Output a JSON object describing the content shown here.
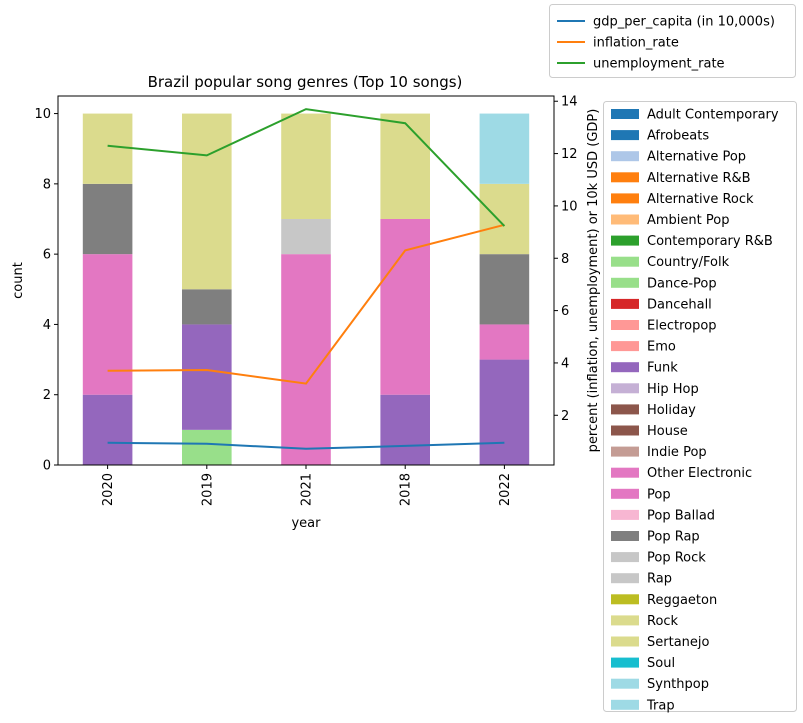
{
  "chart_data": {
    "type": "bar",
    "stacked": true,
    "title": "Brazil popular song genres (Top 10 songs)",
    "xlabel": "year",
    "ylabel": "count",
    "y2label": "percent (inflation, unemployment) or 10k USD (GDP)",
    "categories": [
      "2020",
      "2019",
      "2021",
      "2018",
      "2022"
    ],
    "ylim": [
      0,
      10.5
    ],
    "yticks": [
      0,
      2,
      4,
      6,
      8,
      10
    ],
    "y2lim": [
      0.1,
      14.2
    ],
    "y2ticks": [
      2,
      4,
      6,
      8,
      10,
      12,
      14
    ],
    "genre_legend": [
      {
        "name": "Adult Contemporary",
        "color": "#1f77b4"
      },
      {
        "name": "Afrobeats",
        "color": "#1f77b4"
      },
      {
        "name": "Alternative Pop",
        "color": "#aec7e8"
      },
      {
        "name": "Alternative R&B",
        "color": "#ff7f0e"
      },
      {
        "name": "Alternative Rock",
        "color": "#ff7f0e"
      },
      {
        "name": "Ambient Pop",
        "color": "#ffbb78"
      },
      {
        "name": "Contemporary R&B",
        "color": "#2ca02c"
      },
      {
        "name": "Country/Folk",
        "color": "#98df8a"
      },
      {
        "name": "Dance-Pop",
        "color": "#98df8a"
      },
      {
        "name": "Dancehall",
        "color": "#d62728"
      },
      {
        "name": "Electropop",
        "color": "#ff9896"
      },
      {
        "name": "Emo",
        "color": "#ff9896"
      },
      {
        "name": "Funk",
        "color": "#9467bd"
      },
      {
        "name": "Hip Hop",
        "color": "#c5b0d5"
      },
      {
        "name": "Holiday",
        "color": "#8c564b"
      },
      {
        "name": "House",
        "color": "#8c564b"
      },
      {
        "name": "Indie Pop",
        "color": "#c49c94"
      },
      {
        "name": "Other Electronic",
        "color": "#e377c2"
      },
      {
        "name": "Pop",
        "color": "#e377c2"
      },
      {
        "name": "Pop Ballad",
        "color": "#f7b6d2"
      },
      {
        "name": "Pop Rap",
        "color": "#7f7f7f"
      },
      {
        "name": "Pop Rock",
        "color": "#c7c7c7"
      },
      {
        "name": "Rap",
        "color": "#c7c7c7"
      },
      {
        "name": "Reggaeton",
        "color": "#bcbd22"
      },
      {
        "name": "Rock",
        "color": "#dbdb8d"
      },
      {
        "name": "Sertanejo",
        "color": "#dbdb8d"
      },
      {
        "name": "Soul",
        "color": "#17becf"
      },
      {
        "name": "Synthpop",
        "color": "#9edae5"
      },
      {
        "name": "Trap",
        "color": "#9edae5"
      }
    ],
    "stacks": [
      [
        {
          "genre": "Funk",
          "value": 2,
          "color": "#9467bd"
        },
        {
          "genre": "Pop",
          "value": 4,
          "color": "#e377c2"
        },
        {
          "genre": "Pop Rap",
          "value": 2,
          "color": "#7f7f7f"
        },
        {
          "genre": "Sertanejo",
          "value": 2,
          "color": "#dbdb8d"
        }
      ],
      [
        {
          "genre": "Dance-Pop",
          "value": 1,
          "color": "#98df8a"
        },
        {
          "genre": "Funk",
          "value": 3,
          "color": "#9467bd"
        },
        {
          "genre": "Pop Rap",
          "value": 1,
          "color": "#7f7f7f"
        },
        {
          "genre": "Sertanejo",
          "value": 5,
          "color": "#dbdb8d"
        }
      ],
      [
        {
          "genre": "Pop",
          "value": 6,
          "color": "#e377c2"
        },
        {
          "genre": "Rap",
          "value": 1,
          "color": "#c7c7c7"
        },
        {
          "genre": "Sertanejo",
          "value": 3,
          "color": "#dbdb8d"
        }
      ],
      [
        {
          "genre": "Funk",
          "value": 2,
          "color": "#9467bd"
        },
        {
          "genre": "Pop",
          "value": 5,
          "color": "#e377c2"
        },
        {
          "genre": "Sertanejo",
          "value": 3,
          "color": "#dbdb8d"
        }
      ],
      [
        {
          "genre": "Funk",
          "value": 3,
          "color": "#9467bd"
        },
        {
          "genre": "Pop",
          "value": 1,
          "color": "#e377c2"
        },
        {
          "genre": "Pop Rap",
          "value": 2,
          "color": "#7f7f7f"
        },
        {
          "genre": "Sertanejo",
          "value": 2,
          "color": "#dbdb8d"
        },
        {
          "genre": "Trap",
          "value": 2,
          "color": "#9edae5"
        }
      ]
    ],
    "series": [
      {
        "name": "gdp_per_capita (in 10,000s)",
        "color": "#1f77b4",
        "values": [
          0.95,
          0.91,
          0.72,
          0.83,
          0.95
        ]
      },
      {
        "name": "inflation_rate",
        "color": "#ff7f0e",
        "values": [
          3.7,
          3.73,
          3.21,
          8.3,
          9.28
        ]
      },
      {
        "name": "unemployment_rate",
        "color": "#2ca02c",
        "values": [
          12.3,
          11.93,
          13.7,
          13.16,
          9.23
        ]
      }
    ]
  }
}
